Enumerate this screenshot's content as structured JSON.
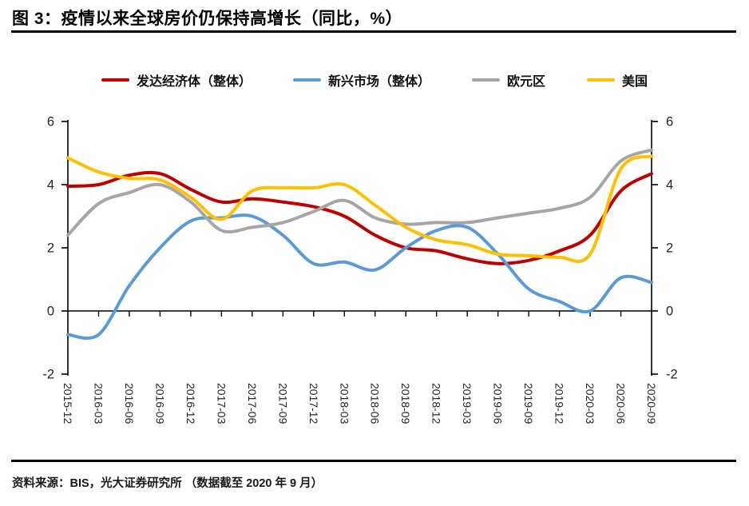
{
  "title": "图 3：疫情以来全球房价仍保持高增长（同比，%）",
  "footer": "资料来源：BIS，光大证券研究所  （数据截至 2020 年 9 月）",
  "chart_data": {
    "type": "line",
    "title": "图 3：疫情以来全球房价仍保持高增长（同比，%）",
    "x": [
      "2015-12",
      "2016-03",
      "2016-06",
      "2016-09",
      "2016-12",
      "2017-03",
      "2017-06",
      "2017-09",
      "2017-12",
      "2018-03",
      "2018-06",
      "2018-09",
      "2018-12",
      "2019-03",
      "2019-06",
      "2019-09",
      "2019-12",
      "2020-03",
      "2020-06",
      "2020-09"
    ],
    "series": [
      {
        "key": "developed-economies",
        "name": "发达经济体（整体）",
        "color": "#C00000",
        "values": [
          3.95,
          4.0,
          4.3,
          4.35,
          3.85,
          3.45,
          3.55,
          3.45,
          3.3,
          3.0,
          2.4,
          2.0,
          1.9,
          1.65,
          1.5,
          1.6,
          1.9,
          2.4,
          3.8,
          4.35
        ]
      },
      {
        "key": "emerging-markets",
        "name": "新兴市场（整体）",
        "color": "#5B9BD5",
        "values": [
          -0.75,
          -0.75,
          0.8,
          2.0,
          2.85,
          2.95,
          3.0,
          2.4,
          1.5,
          1.55,
          1.3,
          2.0,
          2.55,
          2.65,
          1.8,
          0.7,
          0.3,
          0.0,
          1.05,
          0.9
        ]
      },
      {
        "key": "eurozone",
        "name": "欧元区",
        "color": "#A6A6A6",
        "values": [
          2.4,
          3.4,
          3.75,
          4.0,
          3.45,
          2.55,
          2.65,
          2.8,
          3.15,
          3.5,
          2.95,
          2.75,
          2.8,
          2.8,
          2.95,
          3.1,
          3.25,
          3.6,
          4.75,
          5.1
        ]
      },
      {
        "key": "united-states",
        "name": "美国",
        "color": "#FFC000",
        "values": [
          4.85,
          4.4,
          4.2,
          4.15,
          3.6,
          2.9,
          3.8,
          3.9,
          3.9,
          4.0,
          3.35,
          2.65,
          2.25,
          2.1,
          1.8,
          1.75,
          1.7,
          1.8,
          4.5,
          4.9
        ]
      }
    ],
    "ylim": [
      -2,
      6
    ],
    "yticks": [
      6,
      4,
      2,
      0,
      -2
    ],
    "grid": false,
    "legend_position": "top",
    "axis_color": "#000000",
    "tick_label_color": "#262626"
  }
}
